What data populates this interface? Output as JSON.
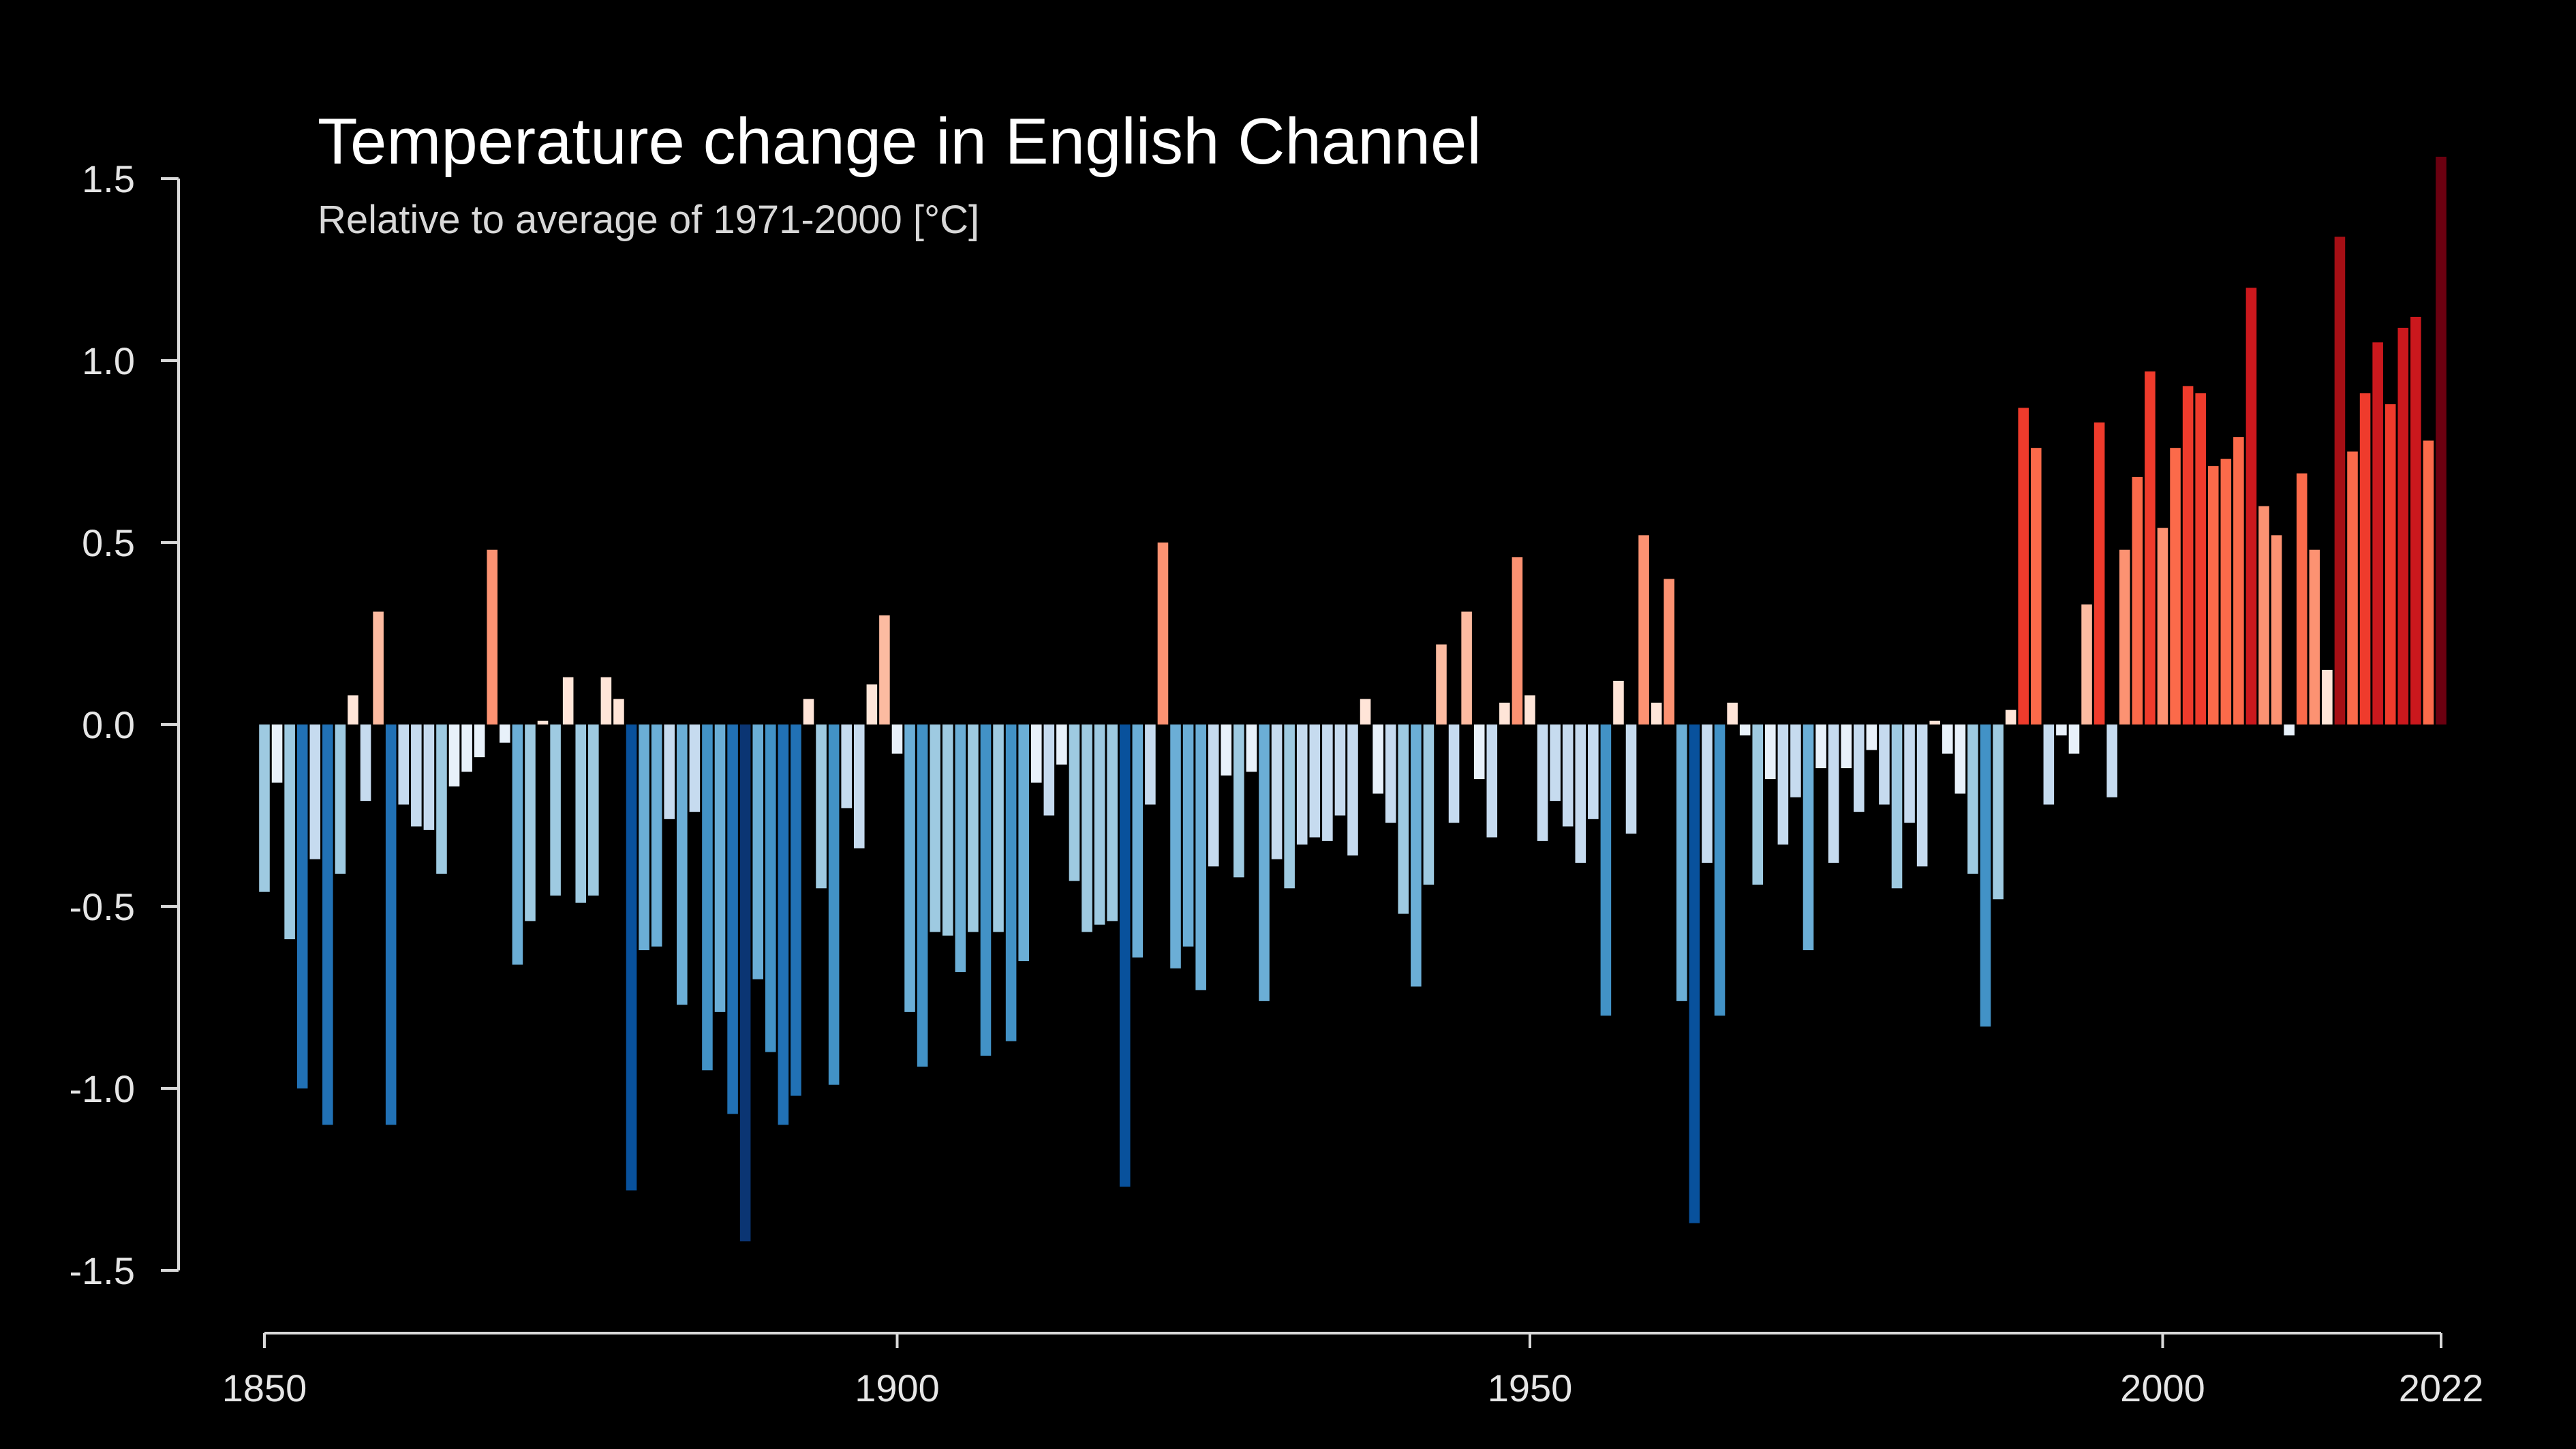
{
  "chart_data": {
    "type": "bar",
    "title": "Temperature change in English Channel",
    "subtitle": "Relative to average of 1971-2000  [°C]",
    "xlabel": "",
    "ylabel": "",
    "x_start": 1850,
    "x_end": 2022,
    "xlim": [
      1850,
      2022
    ],
    "ylim": [
      -1.5,
      1.5
    ],
    "x_ticks": [
      1850,
      1900,
      1950,
      2000,
      2022
    ],
    "y_ticks": [
      1.5,
      1.0,
      0.5,
      0.0,
      -0.5,
      -1.0,
      -1.5
    ],
    "y_tick_labels": [
      "1.5",
      "1.0",
      "0.5",
      "0.0",
      "-0.5",
      "-1.0",
      "-1.5"
    ],
    "grid": false,
    "legend": "none",
    "values": [
      -0.46,
      -0.16,
      -0.59,
      -1.0,
      -0.37,
      -1.1,
      -0.41,
      0.08,
      -0.21,
      0.31,
      -1.1,
      -0.22,
      -0.28,
      -0.29,
      -0.41,
      -0.17,
      -0.13,
      -0.09,
      0.48,
      -0.05,
      -0.66,
      -0.54,
      0.01,
      -0.47,
      0.13,
      -0.49,
      -0.47,
      0.13,
      0.07,
      -1.28,
      -0.62,
      -0.61,
      -0.26,
      -0.77,
      -0.24,
      -0.95,
      -0.79,
      -1.07,
      -1.42,
      -0.7,
      -0.9,
      -1.1,
      -1.02,
      0.07,
      -0.45,
      -0.99,
      -0.23,
      -0.34,
      0.11,
      0.3,
      -0.08,
      -0.79,
      -0.94,
      -0.57,
      -0.58,
      -0.68,
      -0.57,
      -0.91,
      -0.57,
      -0.87,
      -0.65,
      -0.16,
      -0.25,
      -0.11,
      -0.43,
      -0.57,
      -0.55,
      -0.54,
      -1.27,
      -0.64,
      -0.22,
      0.5,
      -0.67,
      -0.61,
      -0.73,
      -0.39,
      -0.14,
      -0.42,
      -0.13,
      -0.76,
      -0.37,
      -0.45,
      -0.33,
      -0.31,
      -0.32,
      -0.25,
      -0.36,
      0.07,
      -0.19,
      -0.27,
      -0.52,
      -0.72,
      -0.44,
      0.22,
      -0.27,
      0.31,
      -0.15,
      -0.31,
      0.06,
      0.46,
      0.08,
      -0.32,
      -0.21,
      -0.28,
      -0.38,
      -0.26,
      -0.8,
      0.12,
      -0.3,
      0.52,
      0.06,
      0.4,
      -0.76,
      -1.37,
      -0.38,
      -0.8,
      0.06,
      -0.03,
      -0.44,
      -0.15,
      -0.33,
      -0.2,
      -0.62,
      -0.12,
      -0.38,
      -0.12,
      -0.24,
      -0.07,
      -0.22,
      -0.45,
      -0.27,
      -0.39,
      0.01,
      -0.08,
      -0.19,
      -0.41,
      -0.83,
      -0.48,
      0.04,
      0.87,
      0.76,
      -0.22,
      -0.03,
      -0.08,
      0.33,
      0.83,
      -0.2,
      0.48,
      0.68,
      0.97,
      0.54,
      0.76,
      0.93,
      0.91,
      0.71,
      0.73,
      0.79,
      1.2,
      0.6,
      0.52,
      -0.03,
      0.69,
      0.48,
      0.15,
      1.34,
      0.75,
      0.91,
      1.05,
      0.88,
      1.09,
      1.12,
      0.78,
      1.56
    ],
    "color_scale": {
      "negative": [
        "#e8f1fa",
        "#c6dbef",
        "#9ecae1",
        "#6baed6",
        "#4292c6",
        "#2171b5",
        "#08519c",
        "#0b3573"
      ],
      "positive": [
        "#ffe5d8",
        "#fcbba1",
        "#fc9272",
        "#fb6a4a",
        "#ef3b2c",
        "#cb181d",
        "#a50f15",
        "#6b0010"
      ]
    }
  }
}
